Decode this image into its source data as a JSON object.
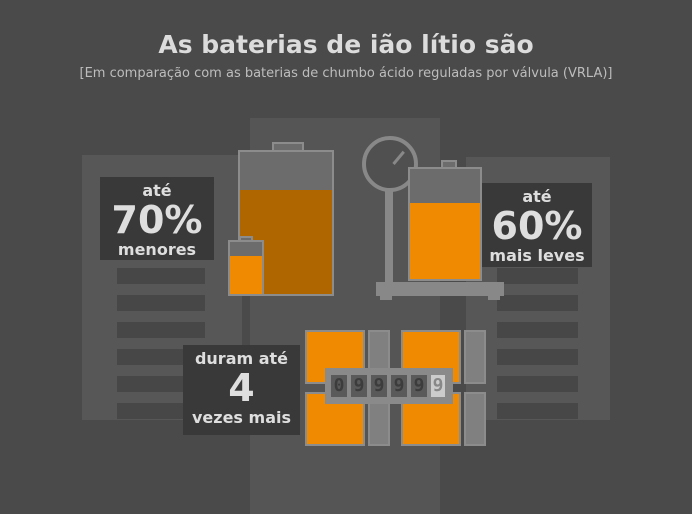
{
  "header": {
    "title": "As baterias de ião lítio são",
    "subtitle": "[Em comparação com as baterias de chumbo ácido reguladas por válvula (VRLA)]"
  },
  "size_claim": {
    "prefix": "até",
    "value": "70%",
    "suffix": "menores"
  },
  "weight_claim": {
    "prefix": "até",
    "value": "60%",
    "suffix": "mais leves"
  },
  "life_claim": {
    "prefix": "duram até",
    "value": "4",
    "suffix": "vezes mais"
  },
  "counter": {
    "digits": [
      "0",
      "9",
      "9",
      "9",
      "9"
    ],
    "rolling_digit": "9"
  },
  "colors": {
    "background": "#4a4a4a",
    "orange": "#f08a00",
    "dark_orange": "#b06600",
    "label_box": "#393939"
  }
}
